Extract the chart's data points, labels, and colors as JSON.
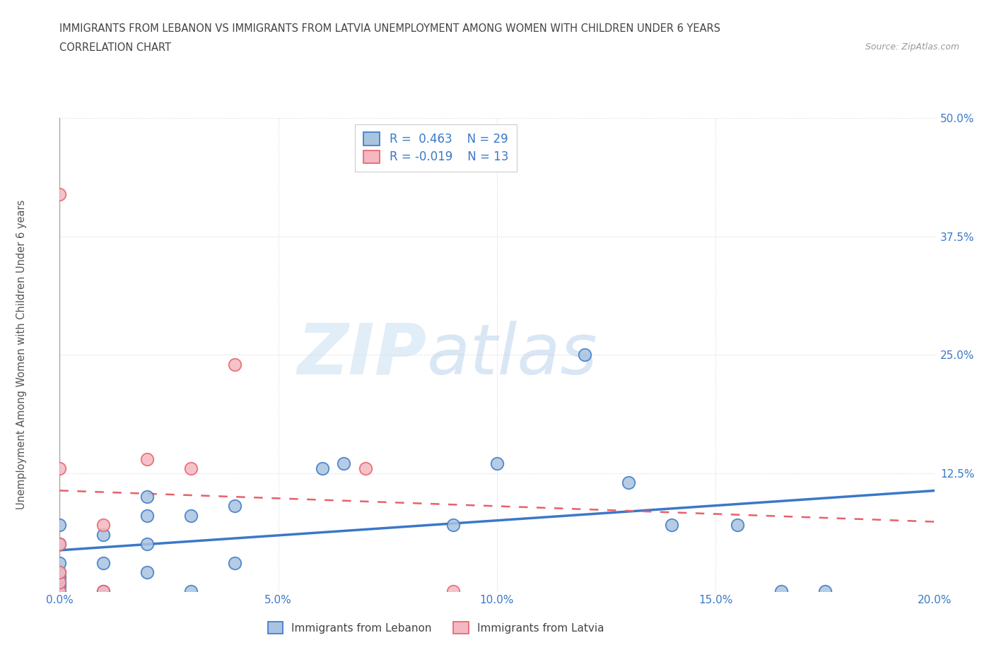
{
  "title_line1": "IMMIGRANTS FROM LEBANON VS IMMIGRANTS FROM LATVIA UNEMPLOYMENT AMONG WOMEN WITH CHILDREN UNDER 6 YEARS",
  "title_line2": "CORRELATION CHART",
  "source_text": "Source: ZipAtlas.com",
  "ylabel": "Unemployment Among Women with Children Under 6 years",
  "xlim": [
    0.0,
    0.2
  ],
  "ylim": [
    0.0,
    0.5
  ],
  "xticks": [
    0.0,
    0.05,
    0.1,
    0.15,
    0.2
  ],
  "xtick_labels": [
    "0.0%",
    "5.0%",
    "10.0%",
    "15.0%",
    "20.0%"
  ],
  "yticks": [
    0.0,
    0.125,
    0.25,
    0.375,
    0.5
  ],
  "ytick_labels": [
    "",
    "12.5%",
    "25.0%",
    "37.5%",
    "50.0%"
  ],
  "lebanon_color": "#a8c4e0",
  "latvia_color": "#f4b8c1",
  "lebanon_line_color": "#3a78c9",
  "latvia_line_color": "#e8606a",
  "lebanon_R": 0.463,
  "lebanon_N": 29,
  "latvia_R": -0.019,
  "latvia_N": 13,
  "watermark_zip": "ZIP",
  "watermark_atlas": "atlas",
  "legend_label_lebanon": "Immigrants from Lebanon",
  "legend_label_latvia": "Immigrants from Latvia",
  "lebanon_x": [
    0.0,
    0.0,
    0.0,
    0.0,
    0.0,
    0.0,
    0.0,
    0.0,
    0.01,
    0.01,
    0.01,
    0.02,
    0.02,
    0.02,
    0.02,
    0.03,
    0.03,
    0.04,
    0.04,
    0.09,
    0.1,
    0.12,
    0.14,
    0.155,
    0.165,
    0.175,
    0.06,
    0.065,
    0.13
  ],
  "lebanon_y": [
    0.0,
    0.005,
    0.01,
    0.015,
    0.02,
    0.03,
    0.05,
    0.07,
    0.0,
    0.03,
    0.06,
    0.02,
    0.05,
    0.08,
    0.1,
    0.0,
    0.08,
    0.03,
    0.09,
    0.07,
    0.135,
    0.25,
    0.07,
    0.07,
    0.0,
    0.0,
    0.13,
    0.135,
    0.115
  ],
  "latvia_x": [
    0.0,
    0.0,
    0.0,
    0.0,
    0.0,
    0.0,
    0.01,
    0.01,
    0.02,
    0.03,
    0.04,
    0.07,
    0.09
  ],
  "latvia_y": [
    0.0,
    0.01,
    0.02,
    0.05,
    0.13,
    0.42,
    0.0,
    0.07,
    0.14,
    0.13,
    0.24,
    0.13,
    0.0
  ],
  "background_color": "#ffffff",
  "grid_color": "#d8d8d8",
  "title_color": "#444444",
  "tick_label_color": "#3a78c9",
  "axis_label_color": "#555555"
}
